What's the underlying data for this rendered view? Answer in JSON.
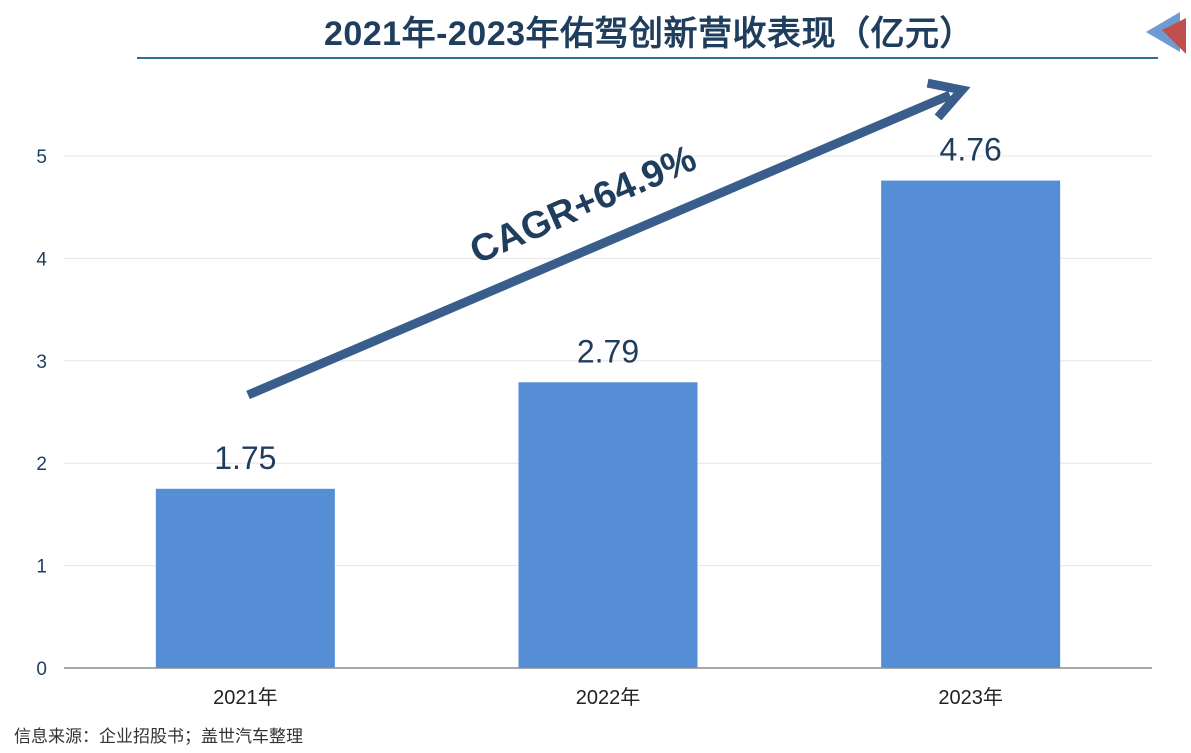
{
  "header": {
    "title": "2021年-2023年佑驾创新营收表现（亿元）"
  },
  "footer": {
    "source": "信息来源：企业招股书；盖世汽车整理"
  },
  "annotation": {
    "cagr_label": "CAGR+64.9%"
  },
  "colors": {
    "bar": "#558ed5",
    "title": "#1f3d5c",
    "arrow": "#3a5e8c",
    "axis_text": "#1f3d5c",
    "grid": "#e6e6e6",
    "corner_blue": "#6e9bd1",
    "corner_red": "#c0504d"
  },
  "chart_data": {
    "type": "bar",
    "title": "2021年-2023年佑驾创新营收表现（亿元）",
    "categories": [
      "2021年",
      "2022年",
      "2023年"
    ],
    "values": [
      1.75,
      2.79,
      4.76
    ],
    "data_labels": [
      "1.75",
      "2.79",
      "4.76"
    ],
    "yticks": [
      "0",
      "1",
      "2",
      "3",
      "4",
      "5"
    ],
    "ylim": [
      0,
      5.5
    ],
    "grid": true,
    "legend": "none",
    "xlabel": "",
    "ylabel": ""
  }
}
